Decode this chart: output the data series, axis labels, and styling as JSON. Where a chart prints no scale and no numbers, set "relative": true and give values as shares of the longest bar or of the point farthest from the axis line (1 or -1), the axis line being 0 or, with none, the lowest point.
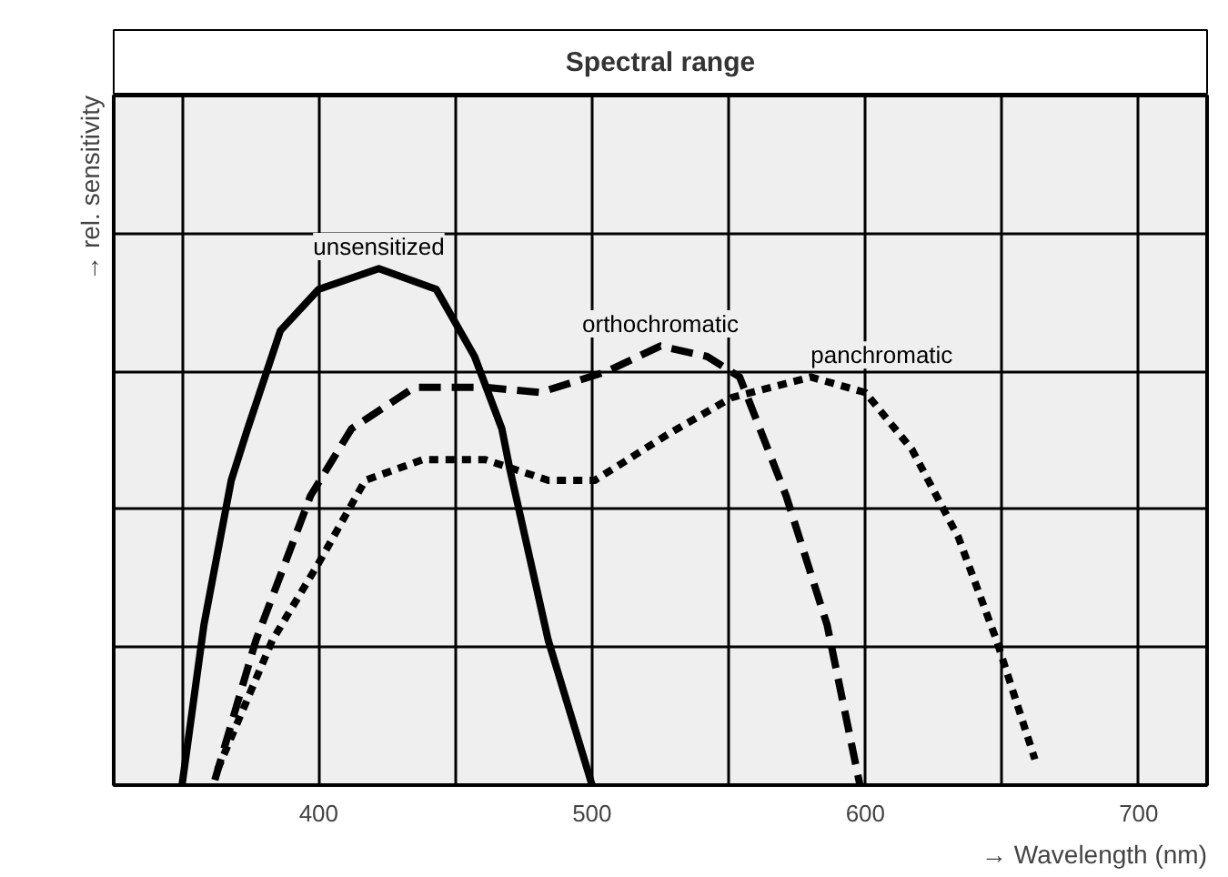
{
  "chart_data": {
    "type": "line",
    "relative": true,
    "xlabel": "→ Wavelength (nm)",
    "ylabel": "→ rel. sensitivity",
    "annotations": [
      "Spectral range"
    ],
    "xlim": [
      325,
      725
    ],
    "xticks": [
      {
        "value": 350,
        "label": null
      },
      400,
      {
        "value": 450,
        "label": null
      },
      500,
      {
        "value": 550,
        "label": null
      },
      600,
      {
        "value": 650,
        "label": null
      },
      700
    ],
    "grid": true,
    "series": [
      {
        "name": "unsensitized",
        "color": "#000000",
        "line_style": "solid",
        "x": [
          350,
          358,
          368,
          374,
          386,
          400,
          422,
          443,
          457,
          467,
          470,
          484,
          500
        ],
        "values": [
          0,
          0.31,
          0.59,
          0.69,
          0.88,
          0.96,
          1,
          0.96,
          0.83,
          0.69,
          0.61,
          0.28,
          0
        ]
      },
      {
        "name": "orthochromatic",
        "color": "#000000",
        "line_style": "dashed",
        "x": [
          362,
          377,
          397,
          412,
          435,
          461,
          481,
          505,
          525,
          542,
          554,
          571,
          586,
          598
        ],
        "values": [
          0.01,
          0.28,
          0.56,
          0.69,
          0.77,
          0.77,
          0.76,
          0.8,
          0.85,
          0.83,
          0.79,
          0.56,
          0.31,
          0
        ]
      },
      {
        "name": "panchromatic",
        "color": "#000000",
        "line_style": "dotted",
        "x": [
          363,
          383,
          400,
          417,
          438,
          461,
          484,
          501,
          528,
          551,
          580,
          600,
          617,
          634,
          648,
          662
        ],
        "values": [
          0.03,
          0.28,
          0.43,
          0.59,
          0.63,
          0.63,
          0.59,
          0.59,
          0.68,
          0.75,
          0.79,
          0.76,
          0.65,
          0.48,
          0.28,
          0.05
        ]
      }
    ]
  }
}
